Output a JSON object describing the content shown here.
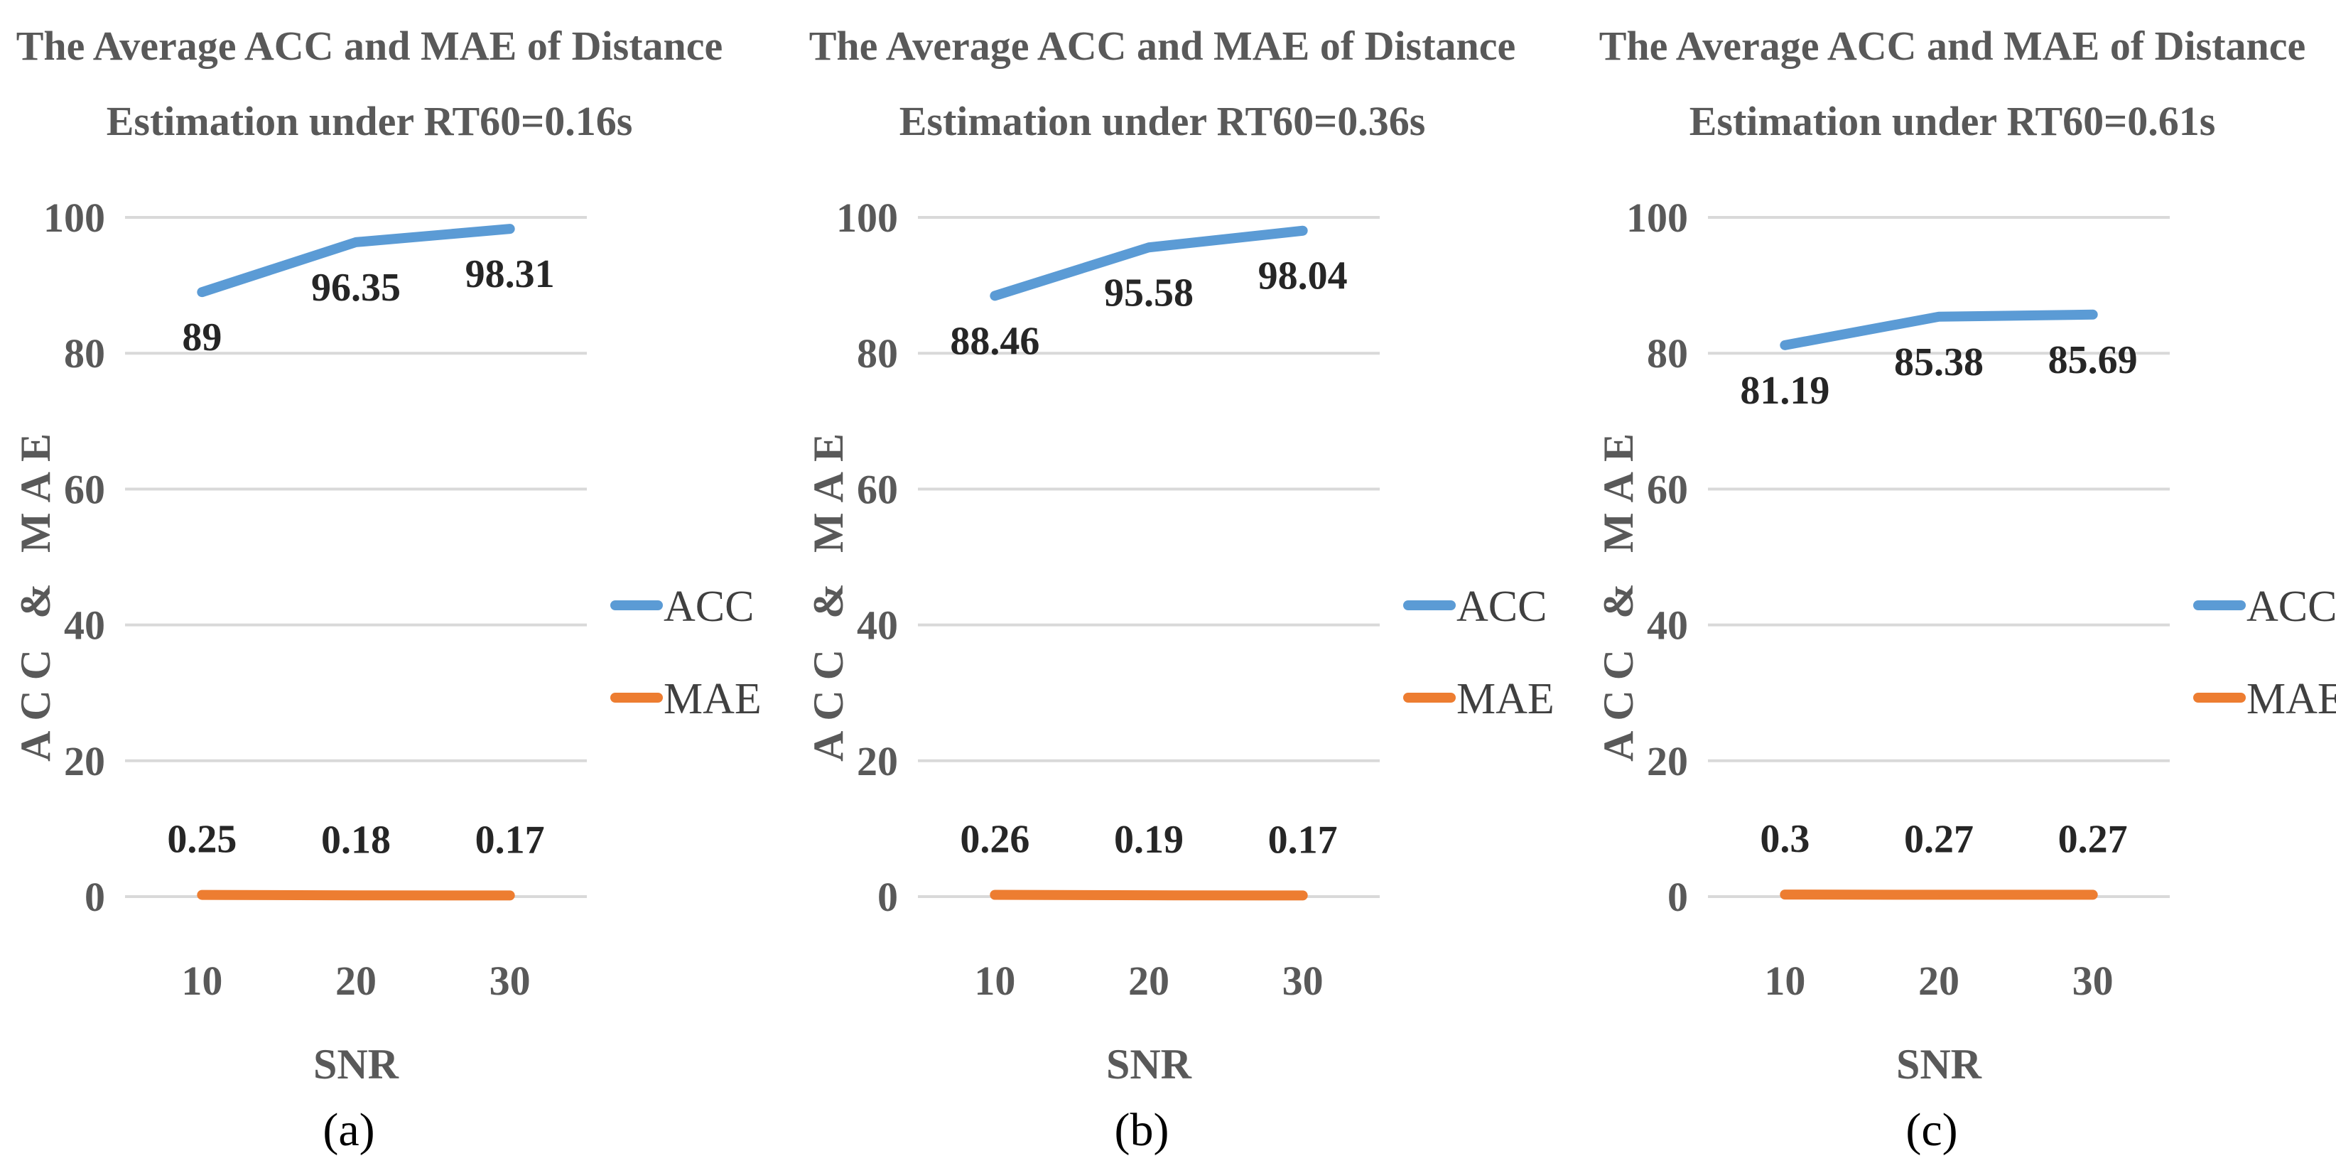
{
  "chart_data": [
    {
      "type": "line",
      "title_lines": [
        "The Average ACC and MAE of Distance",
        "Estimation under RT60=0.16s"
      ],
      "xlabel": "SNR",
      "ylabel": "ACC & MAE",
      "caption": "(a)",
      "categories": [
        "10",
        "20",
        "30"
      ],
      "ylim": [
        0,
        100
      ],
      "yticks": [
        "0",
        "20",
        "40",
        "60",
        "80",
        "100"
      ],
      "grid": true,
      "legend_position": "right",
      "series": [
        {
          "name": "ACC",
          "color": "#5b9bd5",
          "values": [
            89,
            96.35,
            98.31
          ],
          "labels": [
            "89",
            "96.35",
            "98.31"
          ]
        },
        {
          "name": "MAE",
          "color": "#ed7d31",
          "values": [
            0.25,
            0.18,
            0.17
          ],
          "labels": [
            "0.25",
            "0.18",
            "0.17"
          ]
        }
      ]
    },
    {
      "type": "line",
      "title_lines": [
        "The Average ACC and MAE of Distance",
        "Estimation under RT60=0.36s"
      ],
      "xlabel": "SNR",
      "ylabel": "ACC & MAE",
      "caption": "(b)",
      "categories": [
        "10",
        "20",
        "30"
      ],
      "ylim": [
        0,
        100
      ],
      "yticks": [
        "0",
        "20",
        "40",
        "60",
        "80",
        "100"
      ],
      "grid": true,
      "legend_position": "right",
      "series": [
        {
          "name": "ACC",
          "color": "#5b9bd5",
          "values": [
            88.46,
            95.58,
            98.04
          ],
          "labels": [
            "88.46",
            "95.58",
            "98.04"
          ]
        },
        {
          "name": "MAE",
          "color": "#ed7d31",
          "values": [
            0.26,
            0.19,
            0.17
          ],
          "labels": [
            "0.26",
            "0.19",
            "0.17"
          ]
        }
      ]
    },
    {
      "type": "line",
      "title_lines": [
        "The Average ACC and MAE of Distance",
        "Estimation under RT60=0.61s"
      ],
      "xlabel": "SNR",
      "ylabel": "ACC & MAE",
      "caption": "(c)",
      "categories": [
        "10",
        "20",
        "30"
      ],
      "ylim": [
        0,
        100
      ],
      "yticks": [
        "0",
        "20",
        "40",
        "60",
        "80",
        "100"
      ],
      "grid": true,
      "legend_position": "right",
      "series": [
        {
          "name": "ACC",
          "color": "#5b9bd5",
          "values": [
            81.19,
            85.38,
            85.69
          ],
          "labels": [
            "81.19",
            "85.38",
            "85.69"
          ]
        },
        {
          "name": "MAE",
          "color": "#ed7d31",
          "values": [
            0.3,
            0.27,
            0.27
          ],
          "labels": [
            "0.3",
            "0.27",
            "0.27"
          ]
        }
      ]
    }
  ]
}
